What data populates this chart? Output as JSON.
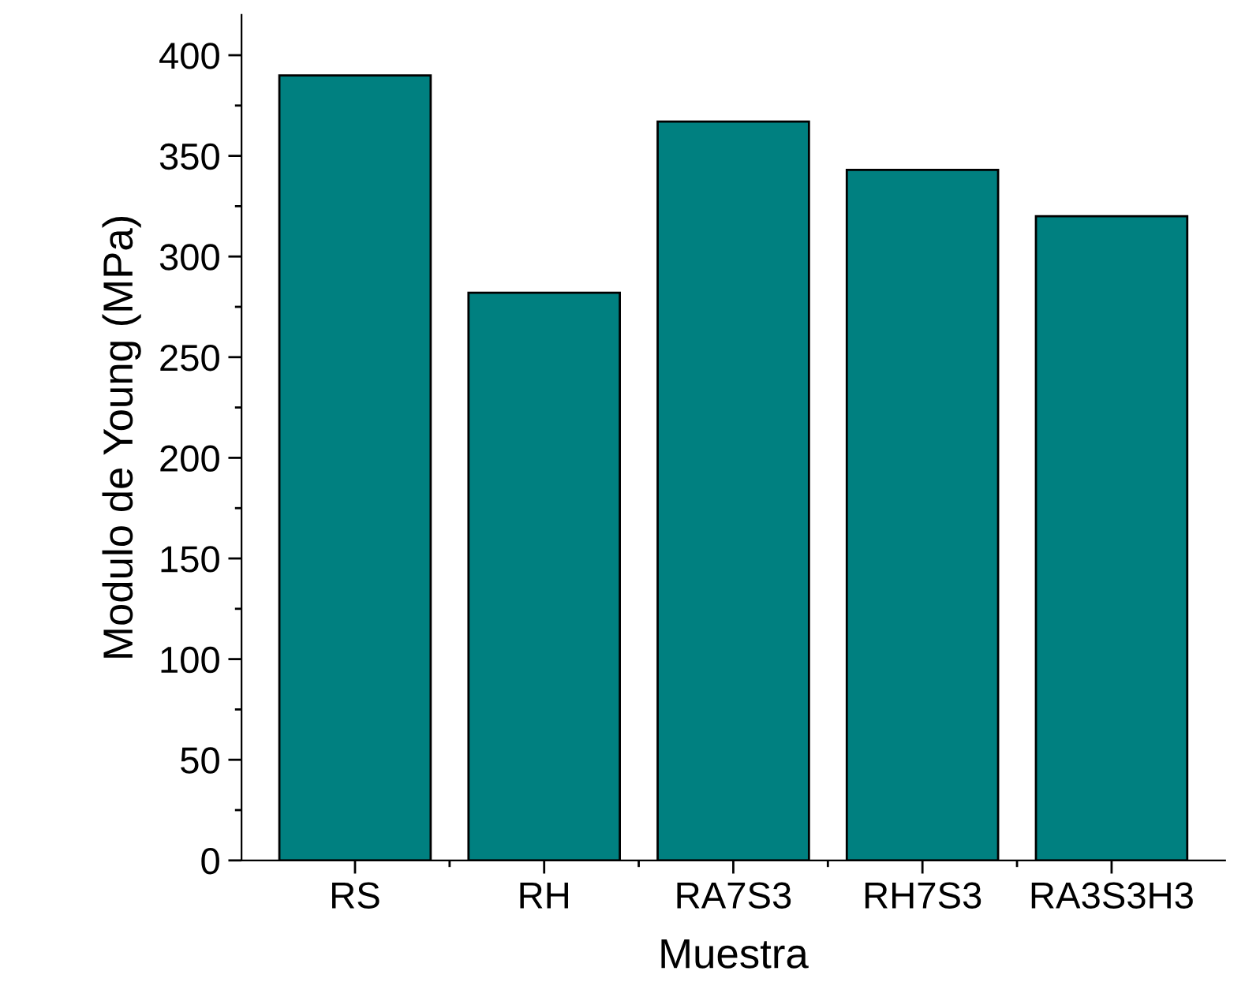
{
  "chart_data": {
    "type": "bar",
    "xlabel": "Muestra",
    "ylabel": "Modulo de Young (MPa)",
    "categories": [
      "RS",
      "RH",
      "RA7S3",
      "RH7S3",
      "RA3S3H3"
    ],
    "values": [
      390,
      282,
      367,
      343,
      320
    ],
    "color": "#008080",
    "ylim": [
      0,
      420
    ],
    "yticks": [
      0,
      50,
      100,
      150,
      200,
      250,
      300,
      350,
      400
    ],
    "grid": false,
    "legend": false
  }
}
